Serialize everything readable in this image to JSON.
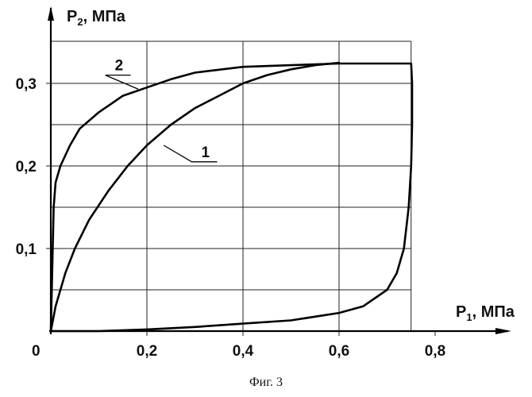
{
  "caption": "Фиг. 3",
  "chart_data": {
    "type": "line",
    "xlabel": {
      "main": "P",
      "sub": "1",
      "unit": ", МПа"
    },
    "ylabel": {
      "main": "P",
      "sub": "2",
      "unit": ", МПа"
    },
    "origin_label": "0",
    "xlim": [
      0,
      0.85
    ],
    "ylim": [
      0,
      0.35
    ],
    "grid": true,
    "x_ticks": [
      0.2,
      0.4,
      0.6,
      0.8
    ],
    "x_tick_labels": [
      "0,2",
      "0,4",
      "0,6",
      "0,8"
    ],
    "y_ticks": [
      0.1,
      0.2,
      0.3
    ],
    "y_tick_labels": [
      "0,1",
      "0,2",
      "0,3"
    ],
    "x_gridlines": [
      0.2,
      0.4,
      0.6,
      0.75
    ],
    "y_gridlines": [
      0.05,
      0.1,
      0.15,
      0.2,
      0.25,
      0.3
    ],
    "series": [
      {
        "name": "1",
        "points": [
          [
            0.0,
            0.0
          ],
          [
            0.01,
            0.03
          ],
          [
            0.03,
            0.07
          ],
          [
            0.05,
            0.1
          ],
          [
            0.08,
            0.135
          ],
          [
            0.12,
            0.17
          ],
          [
            0.16,
            0.2
          ],
          [
            0.2,
            0.225
          ],
          [
            0.25,
            0.25
          ],
          [
            0.3,
            0.27
          ],
          [
            0.35,
            0.285
          ],
          [
            0.4,
            0.3
          ],
          [
            0.45,
            0.31
          ],
          [
            0.5,
            0.317
          ],
          [
            0.55,
            0.322
          ],
          [
            0.6,
            0.325
          ]
        ]
      },
      {
        "name": "2",
        "points": [
          [
            0.0,
            0.0
          ],
          [
            0.002,
            0.05
          ],
          [
            0.004,
            0.1
          ],
          [
            0.006,
            0.15
          ],
          [
            0.01,
            0.18
          ],
          [
            0.02,
            0.2
          ],
          [
            0.04,
            0.225
          ],
          [
            0.06,
            0.245
          ],
          [
            0.1,
            0.265
          ],
          [
            0.15,
            0.285
          ],
          [
            0.2,
            0.295
          ],
          [
            0.25,
            0.305
          ],
          [
            0.3,
            0.313
          ],
          [
            0.4,
            0.32
          ],
          [
            0.5,
            0.322
          ],
          [
            0.6,
            0.324
          ],
          [
            0.75,
            0.324
          ],
          [
            0.752,
            0.3
          ],
          [
            0.752,
            0.25
          ],
          [
            0.75,
            0.2
          ],
          [
            0.745,
            0.15
          ],
          [
            0.735,
            0.1
          ],
          [
            0.72,
            0.07
          ],
          [
            0.7,
            0.05
          ],
          [
            0.65,
            0.03
          ],
          [
            0.6,
            0.022
          ],
          [
            0.5,
            0.013
          ],
          [
            0.4,
            0.009
          ],
          [
            0.3,
            0.005
          ],
          [
            0.2,
            0.002
          ],
          [
            0.1,
            0.0
          ],
          [
            0.0,
            0.0
          ]
        ]
      }
    ],
    "curve_labels": [
      {
        "text": "1",
        "series": "1",
        "anchor": [
          0.235,
          0.225
        ],
        "label_at": [
          0.3,
          0.205
        ]
      },
      {
        "text": "2",
        "series": "2",
        "anchor": [
          0.182,
          0.293
        ],
        "label_at": [
          0.12,
          0.31
        ]
      }
    ]
  }
}
